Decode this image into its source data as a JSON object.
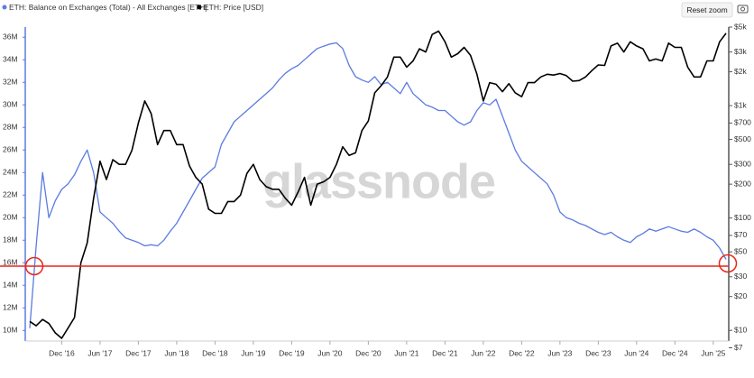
{
  "chart_data": {
    "type": "line",
    "watermark": "glassnode",
    "reset_button": "Reset zoom",
    "x": [
      "2016-07",
      "2016-08",
      "2016-09",
      "2016-10",
      "2016-11",
      "2016-12",
      "2017-01",
      "2017-02",
      "2017-03",
      "2017-04",
      "2017-05",
      "2017-06",
      "2017-07",
      "2017-08",
      "2017-09",
      "2017-10",
      "2017-11",
      "2017-12",
      "2018-01",
      "2018-02",
      "2018-03",
      "2018-04",
      "2018-05",
      "2018-06",
      "2018-07",
      "2018-08",
      "2018-09",
      "2018-10",
      "2018-11",
      "2018-12",
      "2019-01",
      "2019-02",
      "2019-03",
      "2019-04",
      "2019-05",
      "2019-06",
      "2019-07",
      "2019-08",
      "2019-09",
      "2019-10",
      "2019-11",
      "2019-12",
      "2020-01",
      "2020-02",
      "2020-03",
      "2020-04",
      "2020-05",
      "2020-06",
      "2020-07",
      "2020-08",
      "2020-09",
      "2020-10",
      "2020-11",
      "2020-12",
      "2021-01",
      "2021-02",
      "2021-03",
      "2021-04",
      "2021-05",
      "2021-06",
      "2021-07",
      "2021-08",
      "2021-09",
      "2021-10",
      "2021-11",
      "2021-12",
      "2022-01",
      "2022-02",
      "2022-03",
      "2022-04",
      "2022-05",
      "2022-06",
      "2022-07",
      "2022-08",
      "2022-09",
      "2022-10",
      "2022-11",
      "2022-12",
      "2023-01",
      "2023-02",
      "2023-03",
      "2023-04",
      "2023-05",
      "2023-06",
      "2023-07",
      "2023-08",
      "2023-09",
      "2023-10",
      "2023-11",
      "2023-12",
      "2024-01",
      "2024-02",
      "2024-03",
      "2024-04",
      "2024-05",
      "2024-06",
      "2024-07",
      "2024-08",
      "2024-09",
      "2024-10",
      "2024-11",
      "2024-12",
      "2025-01",
      "2025-02",
      "2025-03",
      "2025-04",
      "2025-05",
      "2025-06",
      "2025-07",
      "2025-08"
    ],
    "series": [
      {
        "name": "ETH: Balance on Exchanges (Total) - All Exchanges [ETH]",
        "color": "#5b7be0",
        "axis": "y",
        "values": [
          10.2,
          17.5,
          24.0,
          20.0,
          21.5,
          22.5,
          23.0,
          23.8,
          25.0,
          26.0,
          24.0,
          20.5,
          20.0,
          19.5,
          18.8,
          18.2,
          18.0,
          17.8,
          17.5,
          17.6,
          17.5,
          18.0,
          18.8,
          19.5,
          20.5,
          21.5,
          22.5,
          23.5,
          24.0,
          24.5,
          26.5,
          27.5,
          28.5,
          29.0,
          29.5,
          30.0,
          30.5,
          31.0,
          31.5,
          32.2,
          32.8,
          33.2,
          33.5,
          34.0,
          34.5,
          35.0,
          35.2,
          35.4,
          35.5,
          35.0,
          33.5,
          32.5,
          32.2,
          32.0,
          32.5,
          31.8,
          32.0,
          31.5,
          31.0,
          32.0,
          31.0,
          30.5,
          30.0,
          29.8,
          29.5,
          29.5,
          29.0,
          28.5,
          28.2,
          28.5,
          29.5,
          30.2,
          30.0,
          30.5,
          29.0,
          27.5,
          26.0,
          25.0,
          24.5,
          24.0,
          23.5,
          23.0,
          22.0,
          20.5,
          20.0,
          19.8,
          19.5,
          19.3,
          19.0,
          18.7,
          18.5,
          18.7,
          18.3,
          18.0,
          17.8,
          18.3,
          18.6,
          19.0,
          18.8,
          19.0,
          19.2,
          19.0,
          18.8,
          18.7,
          19.0,
          18.7,
          18.3,
          18.0,
          17.3,
          16.3
        ]
      },
      {
        "name": "ETH: Price [USD]",
        "color": "#000000",
        "axis": "y2",
        "values": [
          12,
          11,
          12.5,
          11.5,
          9.5,
          8.5,
          10.5,
          13,
          40,
          60,
          150,
          320,
          220,
          330,
          300,
          300,
          400,
          700,
          1100,
          850,
          450,
          600,
          600,
          450,
          450,
          290,
          230,
          200,
          120,
          110,
          110,
          140,
          140,
          160,
          250,
          300,
          220,
          190,
          180,
          180,
          150,
          130,
          170,
          230,
          130,
          200,
          210,
          230,
          300,
          430,
          360,
          380,
          600,
          730,
          1300,
          1500,
          1800,
          2700,
          2700,
          2200,
          2500,
          3200,
          3000,
          4300,
          4600,
          3700,
          2700,
          2900,
          3300,
          2800,
          1900,
          1100,
          1600,
          1550,
          1330,
          1570,
          1300,
          1200,
          1600,
          1600,
          1800,
          1900,
          1870,
          1930,
          1850,
          1650,
          1670,
          1800,
          2050,
          2300,
          2280,
          3400,
          3600,
          3000,
          3700,
          3400,
          3200,
          2500,
          2600,
          2500,
          3600,
          3300,
          3300,
          2200,
          1800,
          1800,
          2500,
          2500,
          3700,
          4400
        ]
      }
    ],
    "ylim": [
      9.3,
      36.9
    ],
    "yticks": [
      {
        "value": 10,
        "label": "10M"
      },
      {
        "value": 12,
        "label": "12M"
      },
      {
        "value": 14,
        "label": "14M"
      },
      {
        "value": 16,
        "label": "16M"
      },
      {
        "value": 18,
        "label": "18M"
      },
      {
        "value": 20,
        "label": "20M"
      },
      {
        "value": 22,
        "label": "22M"
      },
      {
        "value": 24,
        "label": "24M"
      },
      {
        "value": 26,
        "label": "26M"
      },
      {
        "value": 28,
        "label": "28M"
      },
      {
        "value": 30,
        "label": "30M"
      },
      {
        "value": 32,
        "label": "32M"
      },
      {
        "value": 34,
        "label": "34M"
      },
      {
        "value": 36,
        "label": "36M"
      }
    ],
    "y2lim": [
      8.5,
      5000
    ],
    "y2log": true,
    "y2ticks": [
      {
        "value": 7,
        "label": "$7"
      },
      {
        "value": 10,
        "label": "$10"
      },
      {
        "value": 20,
        "label": "$20"
      },
      {
        "value": 30,
        "label": "$30"
      },
      {
        "value": 50,
        "label": "$50"
      },
      {
        "value": 70,
        "label": "$70"
      },
      {
        "value": 100,
        "label": "$100"
      },
      {
        "value": 200,
        "label": "$200"
      },
      {
        "value": 300,
        "label": "$300"
      },
      {
        "value": 500,
        "label": "$500"
      },
      {
        "value": 700,
        "label": "$700"
      },
      {
        "value": 1000,
        "label": "$1k"
      },
      {
        "value": 2000,
        "label": "$2k"
      },
      {
        "value": 3000,
        "label": "$3k"
      },
      {
        "value": 5000,
        "label": "$5k"
      }
    ],
    "xticks": [
      {
        "value": "2016-12",
        "label": "Dec '16"
      },
      {
        "value": "2017-06",
        "label": "Jun '17"
      },
      {
        "value": "2017-12",
        "label": "Dec '17"
      },
      {
        "value": "2018-06",
        "label": "Jun '18"
      },
      {
        "value": "2018-12",
        "label": "Dec '18"
      },
      {
        "value": "2019-06",
        "label": "Jun '19"
      },
      {
        "value": "2019-12",
        "label": "Dec '19"
      },
      {
        "value": "2020-06",
        "label": "Jun '20"
      },
      {
        "value": "2020-12",
        "label": "Dec '20"
      },
      {
        "value": "2021-06",
        "label": "Jun '21"
      },
      {
        "value": "2021-12",
        "label": "Dec '21"
      },
      {
        "value": "2022-06",
        "label": "Jun '22"
      },
      {
        "value": "2022-12",
        "label": "Dec '22"
      },
      {
        "value": "2023-06",
        "label": "Jun '23"
      },
      {
        "value": "2023-12",
        "label": "Dec '23"
      },
      {
        "value": "2024-06",
        "label": "Jun '24"
      },
      {
        "value": "2024-12",
        "label": "Dec '24"
      },
      {
        "value": "2025-06",
        "label": "Jun '25"
      }
    ],
    "grid": false
  }
}
